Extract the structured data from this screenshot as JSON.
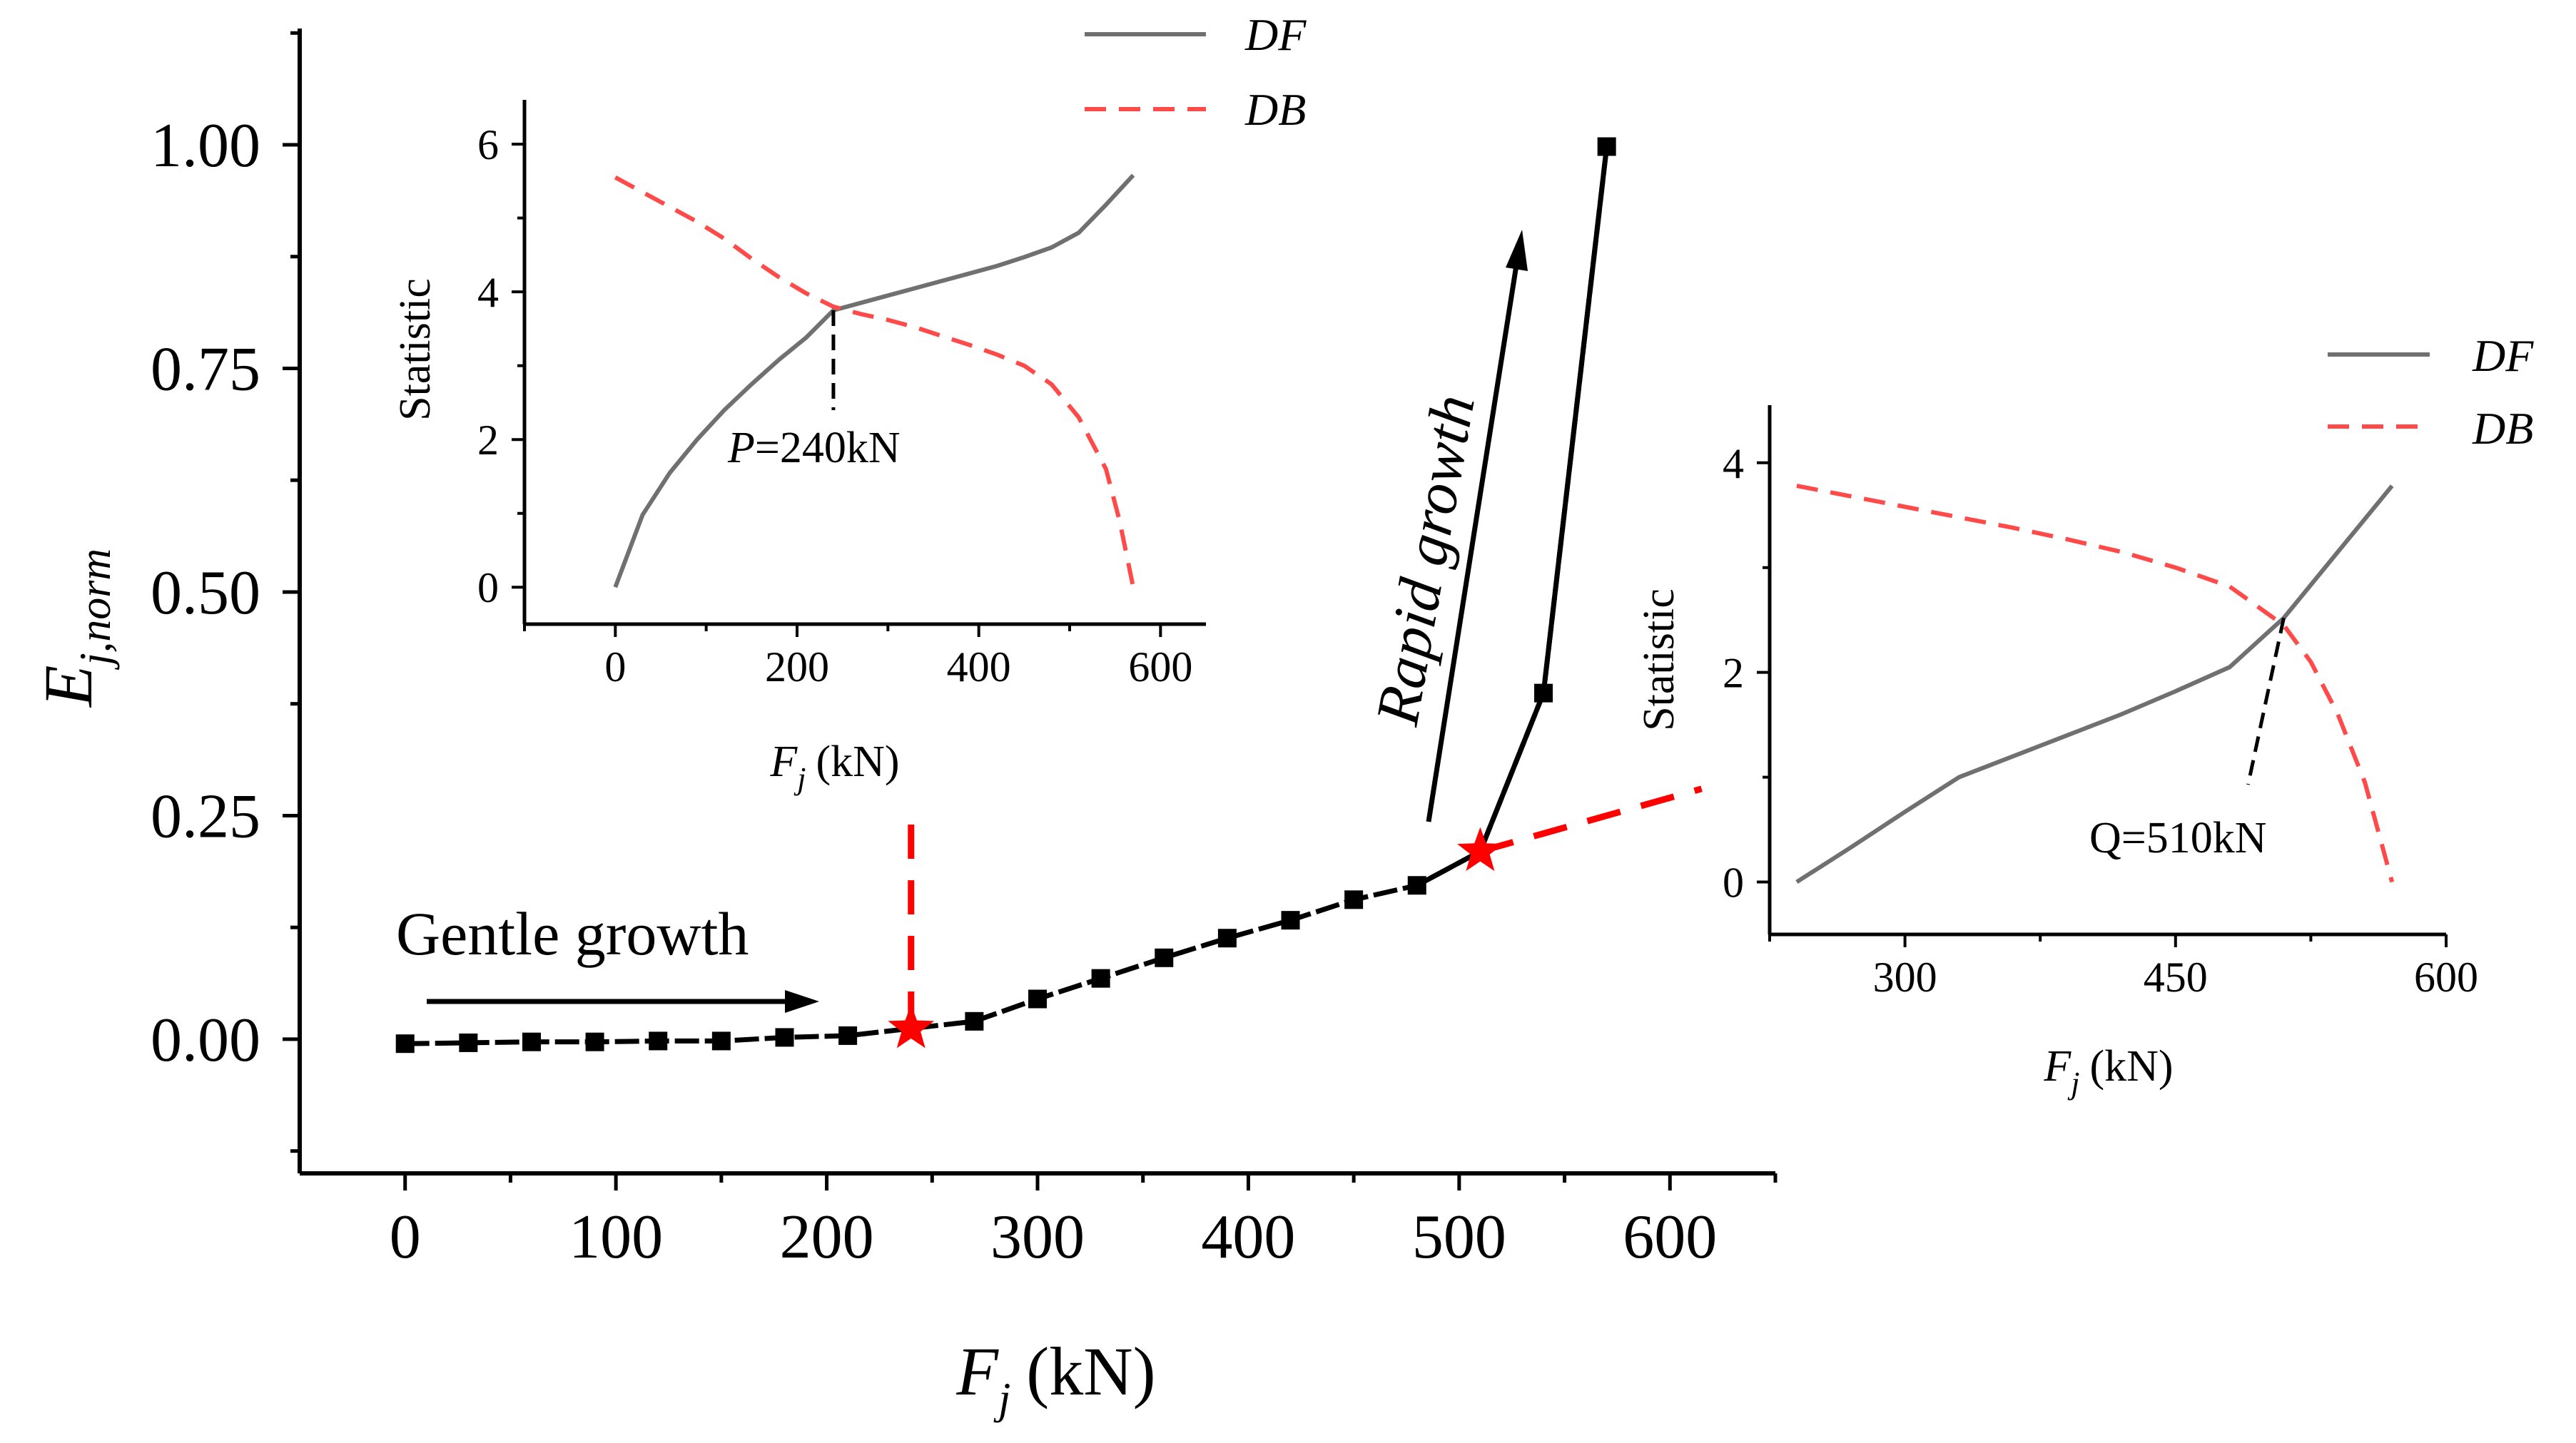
{
  "colors": {
    "black": "#000000",
    "red": "#ff0000",
    "red_light": "#ff4a4a",
    "gray": "#707070"
  },
  "chart_data": [
    {
      "id": "main",
      "type": "line",
      "xlabel": "F",
      "xlabel_sub": "j",
      "xlabel_unit": "(kN)",
      "ylabel": "E",
      "ylabel_sub": "j,norm",
      "xlim": [
        -50,
        650
      ],
      "ylim": [
        -0.15,
        1.13
      ],
      "xticks": [
        "0",
        "100",
        "200",
        "300",
        "400",
        "500",
        "600"
      ],
      "yticks": [
        "0.00",
        "0.25",
        "0.50",
        "0.75",
        "1.00"
      ],
      "series": [
        {
          "name": "Ej,norm",
          "color": "#000000",
          "marker": "square",
          "x": [
            0,
            30,
            60,
            90,
            120,
            150,
            180,
            210,
            240,
            270,
            300,
            330,
            360,
            390,
            420,
            450,
            480,
            510,
            540,
            570
          ],
          "y": [
            -0.005,
            -0.004,
            -0.003,
            -0.003,
            -0.002,
            -0.002,
            0.002,
            0.004,
            0.012,
            0.02,
            0.045,
            0.068,
            0.091,
            0.113,
            0.133,
            0.156,
            0.172,
            0.21,
            0.387,
            0.998
          ]
        }
      ],
      "guides": [
        {
          "name": "vertical-dashed-P",
          "color": "#ff0000",
          "x": [
            240,
            240
          ],
          "y": [
            0.24,
            0.012
          ]
        },
        {
          "name": "trend-dashed-Q",
          "color": "#ff0000",
          "x": [
            510,
            615
          ],
          "y": [
            0.21,
            0.28
          ]
        }
      ],
      "stars": [
        {
          "x": 240,
          "y": 0.012
        },
        {
          "x": 510,
          "y": 0.21
        }
      ],
      "annotations": {
        "gentle": "Gentle growth",
        "rapid": "Rapid growth"
      }
    },
    {
      "id": "inset-left",
      "type": "line",
      "xlabel": "F",
      "xlabel_sub": "j",
      "xlabel_unit": "(kN)",
      "ylabel": "Statistic",
      "xlim": [
        -100,
        650
      ],
      "ylim": [
        -0.5,
        6.6
      ],
      "xticks": [
        "0",
        "200",
        "400",
        "600"
      ],
      "yticks": [
        "0",
        "2",
        "4",
        "6"
      ],
      "series": [
        {
          "name": "DF",
          "color": "#707070",
          "dash": "solid",
          "x": [
            0,
            30,
            60,
            90,
            120,
            150,
            180,
            210,
            240,
            270,
            300,
            330,
            360,
            390,
            420,
            450,
            480,
            510,
            540,
            570
          ],
          "y": [
            0,
            0.98,
            1.55,
            2.0,
            2.4,
            2.75,
            3.08,
            3.38,
            3.75,
            3.85,
            3.95,
            4.05,
            4.15,
            4.25,
            4.35,
            4.47,
            4.6,
            4.8,
            5.18,
            5.58
          ]
        },
        {
          "name": "DB",
          "color": "#ff4a4a",
          "dash": "dashed",
          "x": [
            0,
            30,
            60,
            90,
            120,
            150,
            180,
            210,
            240,
            270,
            300,
            330,
            360,
            390,
            420,
            450,
            480,
            510,
            540,
            555,
            570
          ],
          "y": [
            5.55,
            5.35,
            5.15,
            4.95,
            4.72,
            4.45,
            4.2,
            3.98,
            3.8,
            3.7,
            3.62,
            3.52,
            3.4,
            3.28,
            3.15,
            3.0,
            2.75,
            2.3,
            1.6,
            0.9,
            0
          ]
        }
      ],
      "marker_label": "P=240kN",
      "marker_label_var": "P",
      "marker_label_rest": "=240kN",
      "marker_x": 240,
      "legend": [
        "DF",
        "DB"
      ]
    },
    {
      "id": "inset-right",
      "type": "line",
      "xlabel": "F",
      "xlabel_sub": "j",
      "xlabel_unit": "(kN)",
      "ylabel": "Statistic",
      "xlim": [
        225,
        600
      ],
      "ylim": [
        -0.5,
        4.55
      ],
      "xticks": [
        "300",
        "450",
        "600"
      ],
      "yticks": [
        "0",
        "2",
        "4"
      ],
      "series": [
        {
          "name": "DF",
          "color": "#707070",
          "dash": "solid",
          "x": [
            240,
            270,
            300,
            330,
            360,
            390,
            420,
            450,
            480,
            510,
            540,
            570
          ],
          "y": [
            0,
            0.33,
            0.67,
            1.0,
            1.2,
            1.4,
            1.6,
            1.82,
            2.05,
            2.52,
            3.15,
            3.78
          ]
        },
        {
          "name": "DB",
          "color": "#ff4a4a",
          "dash": "dashed",
          "x": [
            240,
            270,
            300,
            330,
            360,
            390,
            420,
            450,
            480,
            510,
            525,
            540,
            555,
            570
          ],
          "y": [
            3.78,
            3.68,
            3.58,
            3.48,
            3.38,
            3.27,
            3.15,
            3.0,
            2.82,
            2.45,
            2.1,
            1.6,
            0.95,
            0
          ]
        }
      ],
      "marker_label": "Q=510kN",
      "marker_x": 510,
      "legend": [
        "DF",
        "DB"
      ]
    }
  ]
}
